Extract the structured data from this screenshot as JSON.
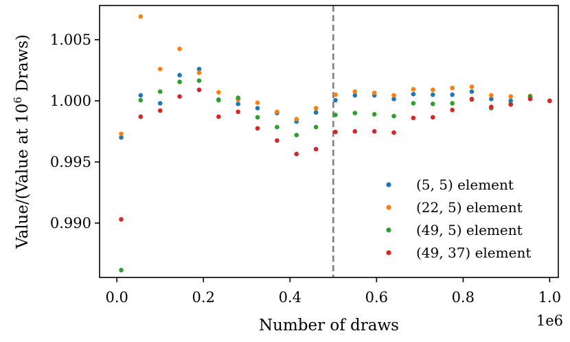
{
  "chart_data": {
    "type": "scatter",
    "xlabel": "Number of draws",
    "ylabel_prefix": "Value/(Value at 10",
    "ylabel_sup": "6",
    "ylabel_suffix": " Draws)",
    "x_offset_label": "1e6",
    "xlim": [
      -0.04,
      1.02
    ],
    "ylim": [
      0.98555,
      1.0078
    ],
    "x_ticks": [
      0.0,
      0.2,
      0.4,
      0.6,
      0.8,
      1.0
    ],
    "x_tick_labels": [
      "0.0",
      "0.2",
      "0.4",
      "0.6",
      "0.8",
      "1.0"
    ],
    "y_ticks": [
      0.99,
      0.995,
      1.0,
      1.005
    ],
    "y_tick_labels": [
      "0.990",
      "0.995",
      "1.000",
      "1.005"
    ],
    "vline_x": 0.5,
    "vline_color": "#808080",
    "legend_position": "lower-right",
    "x": [
      0.01,
      0.055,
      0.1,
      0.145,
      0.19,
      0.235,
      0.28,
      0.325,
      0.37,
      0.415,
      0.46,
      0.505,
      0.55,
      0.595,
      0.64,
      0.685,
      0.73,
      0.775,
      0.82,
      0.865,
      0.91,
      0.955,
      1.0
    ],
    "series": [
      {
        "name": "(5, 5) element",
        "color": "#1f77b4",
        "values": [
          0.997,
          1.00045,
          0.9998,
          1.0021,
          1.0026,
          1.0001,
          0.99975,
          0.9994,
          0.999,
          0.9983,
          0.99905,
          1.00005,
          1.00045,
          1.00045,
          1.00015,
          1.00055,
          1.0005,
          1.0005,
          1.00075,
          1.00015,
          1.0,
          1.0003,
          1.0
        ]
      },
      {
        "name": "(22, 5) element",
        "color": "#ff7f0e",
        "values": [
          0.9973,
          1.0069,
          1.0026,
          1.00425,
          1.0023,
          1.0007,
          1.0001,
          0.99985,
          0.9991,
          0.9985,
          0.9994,
          1.0005,
          1.00075,
          1.00065,
          1.00045,
          1.00095,
          1.0009,
          1.00105,
          1.00115,
          1.00045,
          1.00035,
          1.0004,
          1.0
        ]
      },
      {
        "name": "(49, 5) element",
        "color": "#2ca02c",
        "values": [
          0.98615,
          1.00005,
          1.00075,
          1.00155,
          1.00165,
          1.00005,
          1.00025,
          0.99865,
          0.99785,
          0.9972,
          0.99785,
          0.99885,
          0.999,
          0.9989,
          0.99875,
          0.9998,
          0.99975,
          0.9998,
          1.0001,
          0.9994,
          0.99975,
          1.00035,
          1.0
        ]
      },
      {
        "name": "(49, 37) element",
        "color": "#d62728",
        "values": [
          0.9903,
          0.9987,
          0.9992,
          1.00035,
          1.0009,
          0.9987,
          0.9991,
          0.99775,
          0.99675,
          0.99565,
          0.99605,
          0.99745,
          0.9975,
          0.9975,
          0.9974,
          0.9986,
          0.99865,
          0.99925,
          1.00015,
          0.9995,
          0.9997,
          1.00015,
          1.0
        ]
      }
    ]
  }
}
